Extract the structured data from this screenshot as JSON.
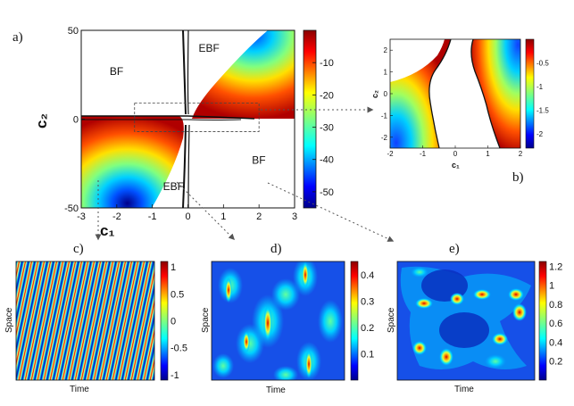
{
  "panel_labels": {
    "a": "a)",
    "b": "b)",
    "c": "c)",
    "d": "d)",
    "e": "e)"
  },
  "colors": {
    "hot": "#b30000",
    "cold": "#00008b",
    "arrow": "#555555"
  },
  "chart_data": [
    {
      "id": "a",
      "type": "heatmap",
      "xlabel": "c₁",
      "ylabel": "c₂",
      "xlim": [
        -3,
        3
      ],
      "ylim": [
        -50,
        50
      ],
      "xticks": [
        "-3",
        "-2",
        "-1",
        "0",
        "1",
        "2",
        "3"
      ],
      "xtick_values": [
        -3,
        -2,
        -1,
        0,
        1,
        2,
        3
      ],
      "yticks": [
        "50",
        "0",
        "-50"
      ],
      "ytick_values": [
        50,
        0,
        -50
      ],
      "colorbar": {
        "ticks": [
          "-10",
          "-20",
          "-30",
          "-40",
          "-50"
        ],
        "tick_values": [
          -10,
          -20,
          -30,
          -40,
          -50
        ],
        "range": [
          -55,
          0
        ]
      },
      "regions": [
        {
          "label": "BF",
          "c1": -2.2,
          "c2": 25
        },
        {
          "label": "EBF",
          "c1": 0.3,
          "c2": 38
        },
        {
          "label": "EBF",
          "c1": -0.7,
          "c2": -40
        },
        {
          "label": "BF",
          "c1": 1.8,
          "c2": -25
        }
      ],
      "zoom_box": {
        "c1": [
          -1.5,
          2
        ],
        "c2": [
          -7,
          9
        ]
      }
    },
    {
      "id": "b",
      "type": "heatmap",
      "xlabel": "c₁",
      "ylabel": "c₂",
      "xlim": [
        -2,
        2
      ],
      "ylim": [
        -2.5,
        2.5
      ],
      "xticks": [
        "-2",
        "-1",
        "0",
        "1",
        "2"
      ],
      "xtick_values": [
        -2,
        -1,
        0,
        1,
        2
      ],
      "yticks": [
        "2",
        "1",
        "0",
        "-1",
        "-2"
      ],
      "ytick_values": [
        2,
        1,
        0,
        -1,
        -2
      ],
      "colorbar": {
        "ticks": [
          "-0.5",
          "-1",
          "-1.5",
          "-2"
        ],
        "tick_values": [
          -0.5,
          -1,
          -1.5,
          -2
        ],
        "range": [
          -2.3,
          0
        ]
      }
    },
    {
      "id": "c",
      "type": "heatmap",
      "xlabel": "Time",
      "ylabel": "Space",
      "colorbar": {
        "ticks": [
          "1",
          "0.5",
          "0",
          "-0.5",
          "-1"
        ],
        "tick_values": [
          1,
          0.5,
          0,
          -0.5,
          -1
        ],
        "range": [
          -1.1,
          1.1
        ]
      }
    },
    {
      "id": "d",
      "type": "heatmap",
      "xlabel": "Time",
      "ylabel": "Space",
      "colorbar": {
        "ticks": [
          "0.4",
          "0.3",
          "0.2",
          "0.1"
        ],
        "tick_values": [
          0.4,
          0.3,
          0.2,
          0.1
        ],
        "range": [
          0,
          0.45
        ]
      }
    },
    {
      "id": "e",
      "type": "heatmap",
      "xlabel": "Time",
      "ylabel": "Space",
      "colorbar": {
        "ticks": [
          "1.2",
          "1",
          "0.8",
          "0.6",
          "0.4",
          "0.2"
        ],
        "tick_values": [
          1.2,
          1,
          0.8,
          0.6,
          0.4,
          0.2
        ],
        "range": [
          0,
          1.25
        ]
      }
    }
  ]
}
